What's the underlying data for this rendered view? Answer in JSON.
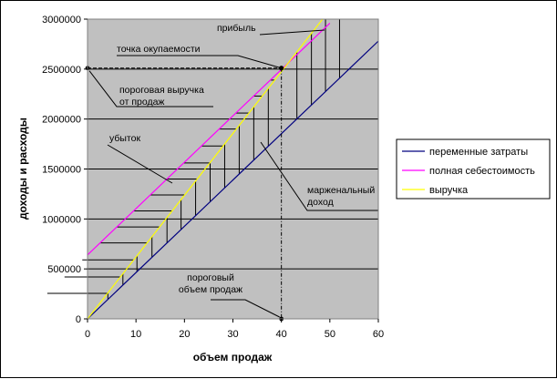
{
  "chart_data": {
    "type": "line",
    "title": "",
    "xlabel": "объем продаж",
    "ylabel": "доходы и расходы",
    "xlim": [
      0,
      60
    ],
    "ylim": [
      0,
      3000000
    ],
    "x_ticks": [
      0,
      10,
      20,
      30,
      40,
      50,
      60
    ],
    "y_ticks": [
      0,
      500000,
      1000000,
      1500000,
      2000000,
      2500000,
      3000000
    ],
    "grid": true,
    "legend_position": "right",
    "series": [
      {
        "name": "переменные затраты",
        "color": "#00007f",
        "x": [
          0,
          60
        ],
        "y": [
          0,
          2780000
        ]
      },
      {
        "name": "полная себестоимость",
        "color": "#ff00ff",
        "x": [
          0,
          50
        ],
        "y": [
          640000,
          2960000
        ]
      },
      {
        "name": "выручка",
        "color": "#ffff00",
        "x": [
          0,
          48.5
        ],
        "y": [
          0,
          3000000
        ]
      }
    ],
    "breakeven": {
      "x": 40,
      "y": 2510000
    },
    "hatch_loss_y": [
      255000,
      420000,
      590000,
      760000,
      920000,
      1080000,
      1240000,
      1400000,
      1560000,
      1730000,
      1900000,
      2060000,
      2230000,
      2390000
    ],
    "hatch_margin_x": [
      4.2,
      7.3,
      10.2,
      13.3,
      16.4,
      19.3,
      22.3,
      25.3,
      28.3,
      31.3,
      34.3,
      37.3
    ],
    "hatch_profit_x": [
      43.2,
      46.2,
      49.1,
      52.0
    ],
    "annotations": [
      {
        "key": "profit",
        "text": "прибыль"
      },
      {
        "key": "breakeven_point",
        "text": "точка окупаемости"
      },
      {
        "key": "threshold_revenue",
        "lines": [
          "пороговая выручка",
          "от продаж"
        ]
      },
      {
        "key": "loss",
        "text": "убыток"
      },
      {
        "key": "margin_income",
        "lines": [
          "марженальный",
          "доход"
        ]
      },
      {
        "key": "threshold_volume",
        "lines": [
          "пороговый",
          "объем продаж"
        ]
      }
    ]
  }
}
